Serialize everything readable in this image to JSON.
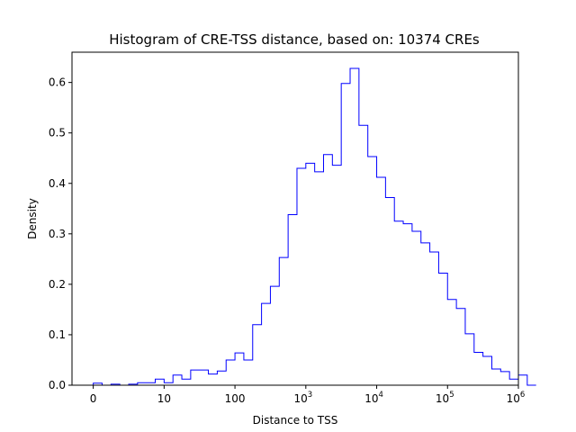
{
  "chart_data": {
    "type": "histogram",
    "title": "Histogram of CRE-TSS distance, based on: 10374 CREs",
    "xlabel": "Distance to TSS",
    "ylabel": "Density",
    "x_scale": "log1p",
    "xlim": [
      -0.3,
      6.0
    ],
    "ylim": [
      0,
      0.66
    ],
    "bin_width_log10": 0.125,
    "x_ticks": [
      {
        "value": 0,
        "label": "0",
        "sup": ""
      },
      {
        "value": 1,
        "label": "10",
        "sup": ""
      },
      {
        "value": 2,
        "label": "100",
        "sup": ""
      },
      {
        "value": 3,
        "label": "10",
        "sup": "3"
      },
      {
        "value": 4,
        "label": "10",
        "sup": "4"
      },
      {
        "value": 5,
        "label": "10",
        "sup": "5"
      },
      {
        "value": 6,
        "label": "10",
        "sup": "6"
      }
    ],
    "y_ticks": [
      0.0,
      0.1,
      0.2,
      0.3,
      0.4,
      0.5,
      0.6
    ],
    "bin_edges_start": 0,
    "densities": [
      0.004,
      0.0,
      0.002,
      0.0,
      0.002,
      0.005,
      0.005,
      0.012,
      0.005,
      0.02,
      0.012,
      0.03,
      0.03,
      0.022,
      0.028,
      0.05,
      0.064,
      0.05,
      0.12,
      0.162,
      0.196,
      0.253,
      0.338,
      0.43,
      0.44,
      0.423,
      0.457,
      0.436,
      0.598,
      0.628,
      0.515,
      0.453,
      0.412,
      0.372,
      0.325,
      0.32,
      0.305,
      0.282,
      0.264,
      0.222,
      0.17,
      0.152,
      0.102,
      0.065,
      0.057,
      0.032,
      0.027,
      0.012,
      0.02,
      0.0
    ],
    "color": "#0000ff",
    "grid": false
  }
}
